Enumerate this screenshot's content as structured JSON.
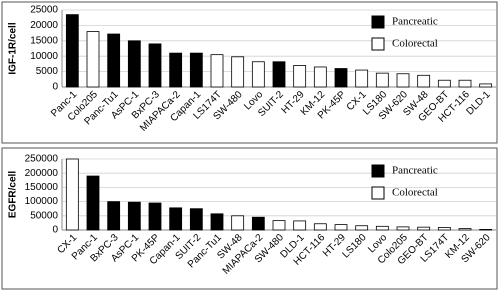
{
  "chart_data": [
    {
      "type": "bar",
      "y_label": "IGF-1R/cell",
      "categories": [
        "Panc-1",
        "Colo205",
        "Panc-Tu1",
        "AsPC-1",
        "BxPC-3",
        "MIAPACa-2",
        "Capan-1",
        "LS174T",
        "SW-480",
        "Lovo",
        "SUIT-2",
        "HT-29",
        "KM-12",
        "PK-45P",
        "CX-1",
        "LS180",
        "SW-620",
        "SW-48",
        "GEO-BT",
        "HCT-116",
        "DLD-1"
      ],
      "series": [
        {
          "name": "Pancreatic",
          "color": "#000000",
          "values": [
            23500,
            null,
            17200,
            15000,
            14000,
            11000,
            11000,
            null,
            null,
            null,
            8200,
            null,
            null,
            6000,
            null,
            null,
            null,
            null,
            null,
            null,
            null
          ]
        },
        {
          "name": "Colorectal",
          "color": "#ffffff",
          "values": [
            null,
            18000,
            null,
            null,
            null,
            null,
            null,
            10500,
            9800,
            8200,
            null,
            7000,
            6500,
            null,
            5500,
            4500,
            4300,
            3800,
            2200,
            2200,
            1000
          ]
        }
      ],
      "ylim": [
        0,
        25000
      ],
      "yticks": [
        0,
        5000,
        10000,
        15000,
        20000,
        25000
      ],
      "grid": true,
      "legend": "top-right"
    },
    {
      "type": "bar",
      "y_label": "EGFR/cell",
      "categories": [
        "CX-1",
        "Panc-1",
        "BxPC-3",
        "AsPC-1",
        "PK-45P",
        "Capan-1",
        "SUIT-2",
        "Panc-Tu1",
        "SW-48",
        "MIAPACa-2",
        "SW-480",
        "DLD-1",
        "HCT-116",
        "HT-29",
        "LS180",
        "Lovo",
        "Colo205",
        "GEO-BT",
        "LS174T",
        "KM-12",
        "SW-620"
      ],
      "series": [
        {
          "name": "Pancreatic",
          "color": "#000000",
          "values": [
            null,
            190000,
            100000,
            98000,
            95000,
            78000,
            75000,
            57000,
            null,
            45000,
            null,
            null,
            null,
            null,
            null,
            null,
            null,
            null,
            null,
            null,
            null
          ]
        },
        {
          "name": "Colorectal",
          "color": "#ffffff",
          "values": [
            250000,
            null,
            null,
            null,
            null,
            null,
            null,
            null,
            50000,
            null,
            33000,
            32000,
            22000,
            19000,
            15000,
            13000,
            11000,
            10000,
            9000,
            5000,
            2000
          ]
        }
      ],
      "ylim": [
        0,
        250000
      ],
      "yticks": [
        0,
        50000,
        100000,
        150000,
        200000,
        250000
      ],
      "grid": true,
      "legend": "top-right"
    }
  ]
}
